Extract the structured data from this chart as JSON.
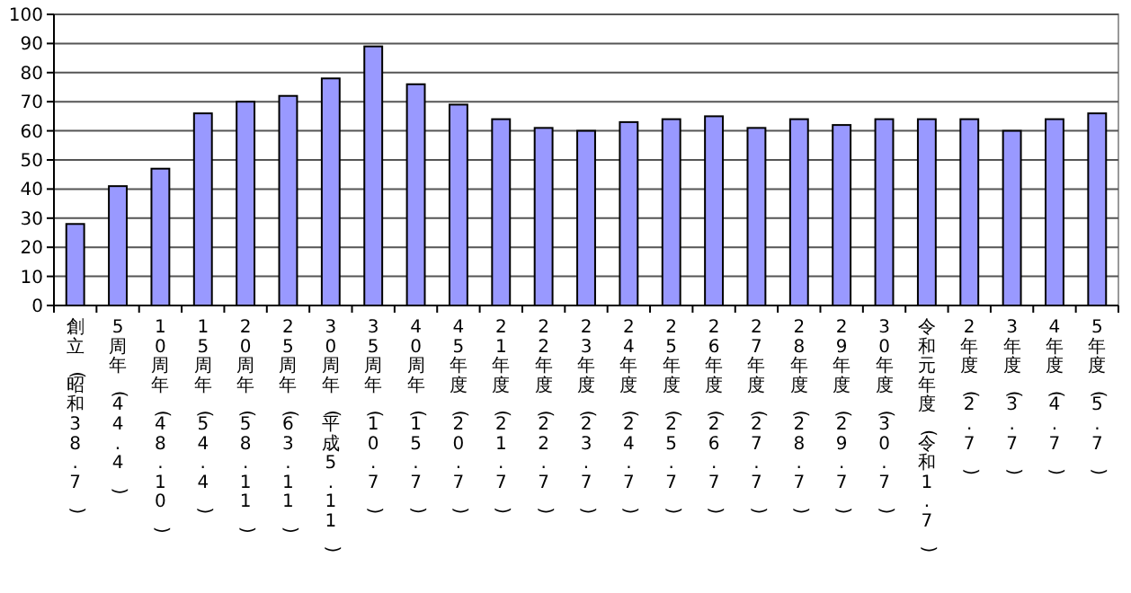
{
  "chart_data": {
    "type": "bar",
    "categories": [
      "創立(昭和38.7)",
      "5周年(44.4)",
      "10周年(48.10)",
      "15周年(54.4)",
      "20周年(58.11)",
      "25周年(63.11)",
      "30周年(平成5.11)",
      "35周年(10.7)",
      "40周年(15.7)",
      "45年度(20.7)",
      "21年度(21.7)",
      "22年度(22.7)",
      "23年度(23.7)",
      "24年度(24.7)",
      "25年度(25.7)",
      "26年度(26.7)",
      "27年度(27.7)",
      "28年度(28.7)",
      "29年度(29.7)",
      "30年度(30.7)",
      "令和元年度(令和1.7)",
      "2年度(2.7)",
      "3年度(3.7)",
      "4年度(4.7)",
      "5年度(5.7)"
    ],
    "values": [
      28,
      41,
      47,
      66,
      70,
      72,
      78,
      89,
      76,
      69,
      64,
      61,
      60,
      63,
      64,
      65,
      61,
      64,
      62,
      64,
      64,
      64,
      60,
      64,
      66
    ],
    "color": "#9999ff",
    "ylim": [
      0,
      100
    ],
    "yticks": [
      0,
      10,
      20,
      30,
      40,
      50,
      60,
      70,
      80,
      90,
      100
    ],
    "grid": "y"
  }
}
